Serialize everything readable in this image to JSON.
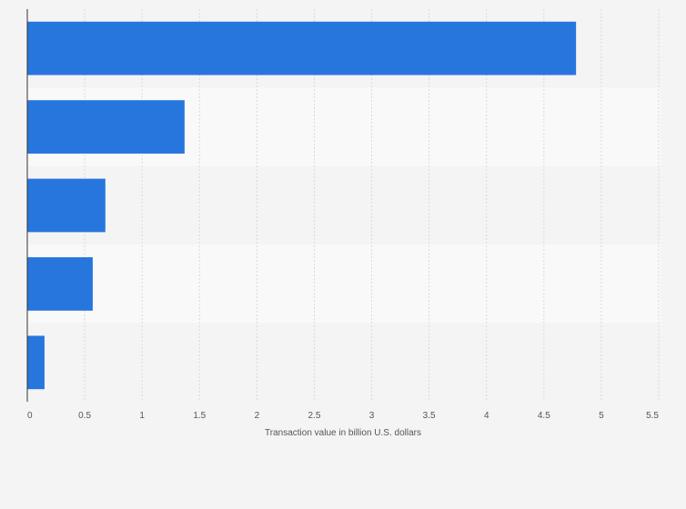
{
  "chart_data": {
    "type": "bar",
    "orientation": "horizontal",
    "categories": [
      "",
      "",
      "",
      "",
      ""
    ],
    "values": [
      4.78,
      1.37,
      0.68,
      0.57,
      0.15
    ],
    "title": "",
    "xlabel": "Transaction value in billion U.S. dollars",
    "ylabel": "",
    "xlim": [
      0,
      5.5
    ],
    "x_ticks": [
      0,
      0.5,
      1,
      1.5,
      2,
      2.5,
      3,
      3.5,
      4,
      4.5,
      5,
      5.5
    ],
    "x_tick_labels": [
      "0",
      "0.5",
      "1",
      "1.5",
      "2",
      "2.5",
      "3",
      "3.5",
      "4",
      "4.5",
      "5",
      "5.5"
    ],
    "grid": true,
    "legend": "none",
    "bar_color": "#2776dd",
    "band_colors": [
      "#f4f4f4",
      "#f9f9f9"
    ]
  }
}
